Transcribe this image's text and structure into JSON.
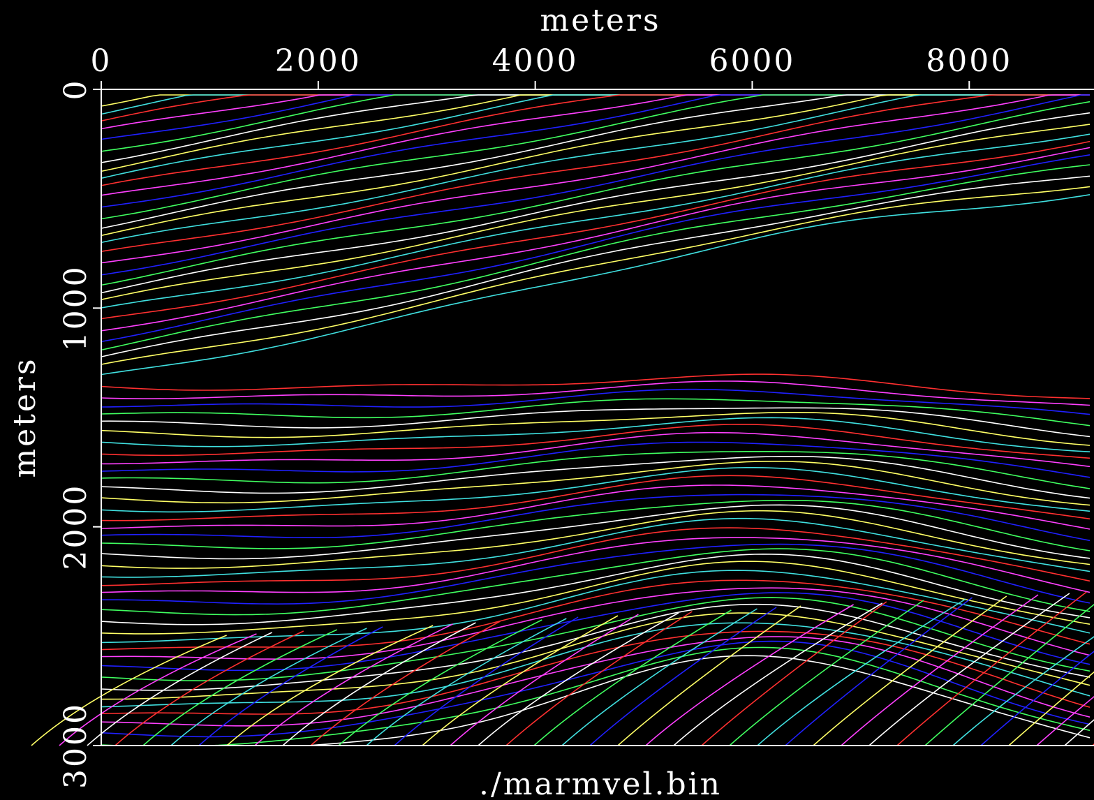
{
  "chart_data": {
    "type": "contour",
    "title": "./marmvel.bin",
    "xlabel": "meters",
    "ylabel": "meters",
    "xlim": [
      0,
      9150
    ],
    "xticks": [
      0,
      2000,
      4000,
      6000,
      8000
    ],
    "ylim": [
      0,
      3000
    ],
    "yticks": [
      0,
      1000,
      2000,
      3000
    ],
    "colors": [
      "#ffff66",
      "#40e0e0",
      "#ff3030",
      "#ff40ff",
      "#2020ff",
      "#40ff60",
      "#ffffff"
    ],
    "background": "#000000"
  }
}
